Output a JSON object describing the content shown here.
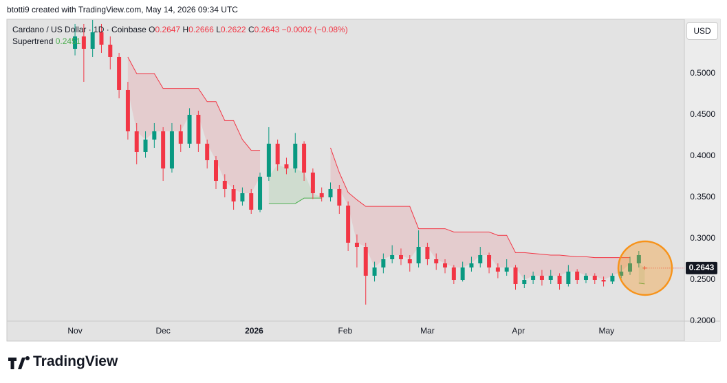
{
  "header": {
    "attribution": "btotti9 created with TradingView.com, May 14, 2026 09:34 UTC"
  },
  "brand": "TradingView",
  "currency": "USD",
  "chart_data": {
    "type": "candlestick",
    "legend": {
      "symbol": "Cardano / US Dollar · 1D · Coinbase",
      "open_label": "O",
      "high_label": "H",
      "low_label": "L",
      "close_label": "C",
      "change": "−0.0002 (−0.08%)"
    },
    "x": [
      0,
      3,
      6,
      9,
      12,
      15,
      18,
      21,
      24,
      27,
      30,
      33,
      36,
      39,
      42,
      45,
      48,
      51,
      54,
      57,
      60,
      63,
      66,
      69,
      72,
      75,
      78,
      81,
      84,
      87,
      90,
      93,
      96,
      99,
      102,
      105,
      108,
      111,
      114,
      117,
      120,
      123,
      126,
      129,
      132,
      135,
      138,
      141,
      144,
      147,
      150,
      153,
      156,
      159,
      162,
      165,
      168,
      171,
      174,
      177,
      180,
      183,
      186,
      189,
      192,
      194
    ],
    "open": [
      0.53,
      0.545,
      0.53,
      0.55,
      0.535,
      0.52,
      0.48,
      0.43,
      0.405,
      0.42,
      0.43,
      0.385,
      0.43,
      0.415,
      0.45,
      0.415,
      0.395,
      0.37,
      0.36,
      0.345,
      0.355,
      0.335,
      0.375,
      0.415,
      0.39,
      0.385,
      0.415,
      0.38,
      0.355,
      0.35,
      0.36,
      0.34,
      0.295,
      0.29,
      0.255,
      0.265,
      0.275,
      0.28,
      0.275,
      0.27,
      0.29,
      0.275,
      0.27,
      0.265,
      0.25,
      0.265,
      0.27,
      0.28,
      0.265,
      0.26,
      0.265,
      0.245,
      0.25,
      0.255,
      0.25,
      0.255,
      0.245,
      0.26,
      0.25,
      0.255,
      0.25,
      0.248,
      0.255,
      0.26,
      0.27,
      0.2647
    ],
    "high": [
      0.56,
      0.56,
      0.565,
      0.56,
      0.545,
      0.525,
      0.49,
      0.44,
      0.43,
      0.44,
      0.435,
      0.44,
      0.438,
      0.458,
      0.455,
      0.42,
      0.4,
      0.378,
      0.365,
      0.362,
      0.36,
      0.38,
      0.435,
      0.42,
      0.398,
      0.428,
      0.418,
      0.385,
      0.362,
      0.368,
      0.365,
      0.345,
      0.305,
      0.295,
      0.272,
      0.282,
      0.292,
      0.288,
      0.28,
      0.31,
      0.295,
      0.282,
      0.275,
      0.268,
      0.272,
      0.278,
      0.29,
      0.283,
      0.27,
      0.275,
      0.268,
      0.256,
      0.26,
      0.262,
      0.262,
      0.258,
      0.268,
      0.263,
      0.258,
      0.258,
      0.254,
      0.258,
      0.268,
      0.278,
      0.285,
      0.2666
    ],
    "low": [
      0.522,
      0.49,
      0.52,
      0.525,
      0.505,
      0.47,
      0.42,
      0.39,
      0.398,
      0.41,
      0.37,
      0.38,
      0.405,
      0.41,
      0.405,
      0.385,
      0.36,
      0.35,
      0.335,
      0.34,
      0.33,
      0.332,
      0.37,
      0.382,
      0.378,
      0.38,
      0.37,
      0.348,
      0.345,
      0.345,
      0.33,
      0.285,
      0.265,
      0.22,
      0.248,
      0.258,
      0.27,
      0.268,
      0.26,
      0.265,
      0.268,
      0.262,
      0.258,
      0.245,
      0.248,
      0.26,
      0.265,
      0.258,
      0.252,
      0.255,
      0.238,
      0.24,
      0.245,
      0.243,
      0.245,
      0.238,
      0.242,
      0.245,
      0.246,
      0.245,
      0.242,
      0.245,
      0.252,
      0.256,
      0.265,
      0.2622
    ],
    "close": [
      0.545,
      0.53,
      0.55,
      0.535,
      0.52,
      0.48,
      0.43,
      0.405,
      0.42,
      0.43,
      0.385,
      0.43,
      0.415,
      0.45,
      0.415,
      0.395,
      0.37,
      0.36,
      0.345,
      0.355,
      0.335,
      0.375,
      0.415,
      0.39,
      0.385,
      0.415,
      0.38,
      0.355,
      0.35,
      0.36,
      0.34,
      0.295,
      0.29,
      0.255,
      0.265,
      0.275,
      0.28,
      0.275,
      0.27,
      0.29,
      0.275,
      0.27,
      0.265,
      0.25,
      0.265,
      0.27,
      0.28,
      0.265,
      0.26,
      0.265,
      0.245,
      0.25,
      0.255,
      0.25,
      0.255,
      0.245,
      0.26,
      0.25,
      0.255,
      0.25,
      0.248,
      0.255,
      0.26,
      0.27,
      0.28,
      0.2643
    ],
    "up_color": "#089981",
    "down_color": "#f23645",
    "supertrend": {
      "name": "Supertrend",
      "down_color": "#f23645",
      "up_color": "#4caf50",
      "down": [
        null,
        null,
        null,
        null,
        null,
        null,
        0.52,
        0.5,
        0.5,
        0.5,
        0.482,
        0.482,
        0.482,
        0.482,
        0.482,
        0.466,
        0.466,
        0.443,
        0.443,
        0.42,
        0.407,
        0.407,
        null,
        null,
        null,
        null,
        null,
        null,
        null,
        0.41,
        0.38,
        0.356,
        0.347,
        0.339,
        0.339,
        0.339,
        0.339,
        0.339,
        0.339,
        0.312,
        0.312,
        0.312,
        0.312,
        0.308,
        0.308,
        0.308,
        0.308,
        0.308,
        0.304,
        0.304,
        0.283,
        0.283,
        0.282,
        0.281,
        0.28,
        0.28,
        0.279,
        0.278,
        0.278,
        0.277,
        0.277,
        0.277,
        0.277,
        0.277,
        null,
        null
      ],
      "up": [
        null,
        null,
        null,
        null,
        null,
        null,
        null,
        null,
        null,
        null,
        null,
        null,
        null,
        null,
        null,
        null,
        null,
        null,
        null,
        null,
        null,
        null,
        0.3425,
        0.3425,
        0.3425,
        0.3425,
        0.349,
        0.349,
        0.349,
        null,
        null,
        null,
        null,
        null,
        null,
        null,
        null,
        null,
        null,
        null,
        null,
        null,
        null,
        null,
        null,
        null,
        null,
        null,
        null,
        null,
        null,
        null,
        null,
        null,
        null,
        null,
        null,
        null,
        null,
        null,
        null,
        null,
        null,
        null,
        0.246,
        0.2451
      ]
    },
    "xlim": [
      -23.2,
      207.5
    ],
    "xticks": [
      {
        "value": 0,
        "label": "Nov"
      },
      {
        "value": 30,
        "label": "Dec"
      },
      {
        "value": 61,
        "label": "2026"
      },
      {
        "value": 92,
        "label": "Feb"
      },
      {
        "value": 120,
        "label": "Mar"
      },
      {
        "value": 151,
        "label": "Apr"
      },
      {
        "value": 181,
        "label": "May"
      }
    ],
    "ylim": [
      0.2,
      0.5658
    ],
    "yticks": [
      {
        "value": 0.2,
        "label": "0.2000"
      },
      {
        "value": 0.25,
        "label": "0.2500"
      },
      {
        "value": 0.3,
        "label": "0.3000"
      },
      {
        "value": 0.35,
        "label": "0.3500"
      },
      {
        "value": 0.4,
        "label": "0.4000"
      },
      {
        "value": 0.45,
        "label": "0.4500"
      },
      {
        "value": 0.5,
        "label": "0.5000"
      }
    ],
    "grid": false
  }
}
